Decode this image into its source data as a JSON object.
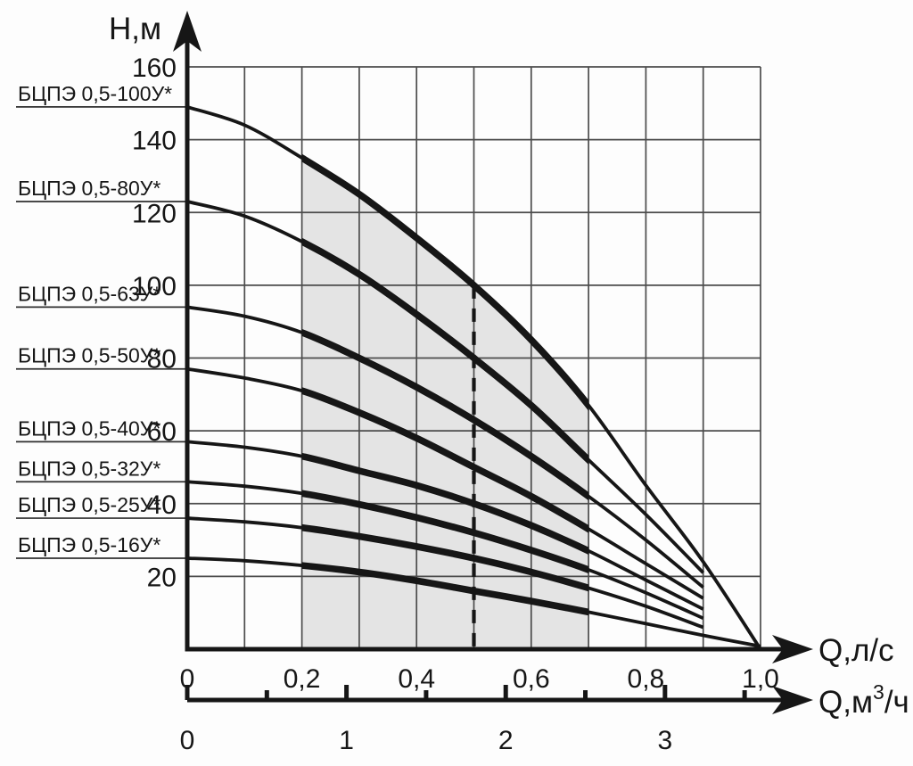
{
  "colors": {
    "curve": "#161616",
    "grid": "#4c4c4c",
    "axis": "#161616",
    "shade": "#e4e4e4",
    "leader": "#2f2f2f",
    "background": "#fdfdfd"
  },
  "chart_data": {
    "type": "line",
    "title": "",
    "ylabel": "H,м",
    "ylim": [
      0,
      160
    ],
    "y_ticks": [
      20,
      40,
      60,
      80,
      100,
      120,
      140,
      160
    ],
    "x_primary": {
      "axis_label": "Q,л/с",
      "xlim": [
        0,
        1.0
      ],
      "tick_values": [
        0,
        0.2,
        0.4,
        0.6,
        0.8,
        1.0
      ],
      "tick_labels": [
        "0",
        "0,2",
        "0,4",
        "0,6",
        "0,8",
        "1,0"
      ]
    },
    "x_secondary": {
      "axis_label_prefix": "Q,м",
      "axis_label_sup": "3",
      "axis_label_suffix": "/ч",
      "unit_per_primary": 3.6,
      "major_tick_values": [
        0,
        1,
        2,
        3
      ],
      "major_tick_labels": [
        "0",
        "1",
        "2",
        "3"
      ],
      "minor_tick_values": [
        0.5,
        1.5,
        2.5,
        3.5
      ]
    },
    "grid": {
      "x_step": 0.1,
      "y_step": 20
    },
    "working_range": {
      "q_min": 0.2,
      "q_max": 0.7
    },
    "nominal_flow_line_q": 0.5,
    "series": [
      {
        "name": "БЦПЭ 0,5-100У*",
        "points": [
          [
            0,
            149
          ],
          [
            0.1,
            144
          ],
          [
            0.2,
            135
          ],
          [
            0.3,
            125
          ],
          [
            0.4,
            113
          ],
          [
            0.5,
            100
          ],
          [
            0.6,
            85
          ],
          [
            0.7,
            67
          ],
          [
            0.8,
            45
          ],
          [
            0.9,
            24
          ],
          [
            1.0,
            0
          ]
        ]
      },
      {
        "name": "БЦПЭ 0,5-80У*",
        "points": [
          [
            0,
            123
          ],
          [
            0.1,
            119
          ],
          [
            0.2,
            112
          ],
          [
            0.3,
            103
          ],
          [
            0.4,
            92
          ],
          [
            0.5,
            80
          ],
          [
            0.6,
            67
          ],
          [
            0.7,
            52
          ],
          [
            0.8,
            37
          ],
          [
            0.9,
            21
          ]
        ]
      },
      {
        "name": "БЦПЭ 0,5-63У*",
        "points": [
          [
            0,
            94
          ],
          [
            0.1,
            91.5
          ],
          [
            0.2,
            87
          ],
          [
            0.3,
            80
          ],
          [
            0.4,
            72
          ],
          [
            0.5,
            63
          ],
          [
            0.6,
            53
          ],
          [
            0.7,
            42
          ],
          [
            0.8,
            30
          ],
          [
            0.9,
            17
          ]
        ]
      },
      {
        "name": "БЦПЭ 0,5-50У*",
        "points": [
          [
            0,
            77
          ],
          [
            0.1,
            74.5
          ],
          [
            0.2,
            71
          ],
          [
            0.3,
            65
          ],
          [
            0.4,
            58
          ],
          [
            0.5,
            50
          ],
          [
            0.6,
            42
          ],
          [
            0.7,
            33
          ],
          [
            0.8,
            23.5
          ],
          [
            0.9,
            14
          ]
        ]
      },
      {
        "name": "БЦПЭ 0,5-40У*",
        "points": [
          [
            0,
            57
          ],
          [
            0.1,
            55.5
          ],
          [
            0.2,
            53
          ],
          [
            0.3,
            49
          ],
          [
            0.4,
            45
          ],
          [
            0.5,
            40
          ],
          [
            0.6,
            34
          ],
          [
            0.7,
            27
          ],
          [
            0.8,
            19
          ],
          [
            0.9,
            11
          ]
        ]
      },
      {
        "name": "БЦПЭ 0,5-32У*",
        "points": [
          [
            0,
            46
          ],
          [
            0.1,
            44.8
          ],
          [
            0.2,
            42.8
          ],
          [
            0.3,
            39.8
          ],
          [
            0.4,
            36.2
          ],
          [
            0.5,
            32
          ],
          [
            0.6,
            27.2
          ],
          [
            0.7,
            21.8
          ],
          [
            0.8,
            15.5
          ],
          [
            0.9,
            8.5
          ]
        ]
      },
      {
        "name": "БЦПЭ 0,5-25У*",
        "points": [
          [
            0,
            36
          ],
          [
            0.1,
            35
          ],
          [
            0.2,
            33.4
          ],
          [
            0.3,
            31
          ],
          [
            0.4,
            28.2
          ],
          [
            0.5,
            25
          ],
          [
            0.6,
            21.2
          ],
          [
            0.7,
            16.8
          ],
          [
            0.8,
            11.8
          ],
          [
            0.9,
            6
          ]
        ]
      },
      {
        "name": "БЦПЭ 0,5-16У*",
        "points": [
          [
            0,
            25
          ],
          [
            0.1,
            24.3
          ],
          [
            0.2,
            23
          ],
          [
            0.3,
            21.2
          ],
          [
            0.4,
            18.8
          ],
          [
            0.5,
            16
          ],
          [
            0.6,
            13.2
          ],
          [
            0.7,
            10.2
          ],
          [
            0.8,
            7
          ],
          [
            0.9,
            3.8
          ],
          [
            1.0,
            0.8
          ]
        ]
      }
    ]
  }
}
